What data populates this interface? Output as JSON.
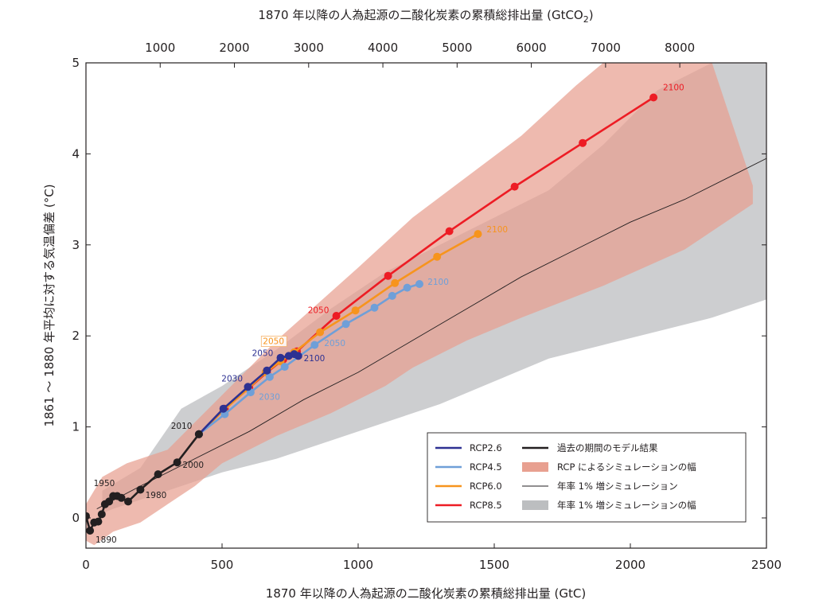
{
  "chart_data": {
    "type": "line",
    "title": "",
    "xlabel": "1870 年以降の人為起源の二酸化炭素の累積総排出量 (GtC)",
    "x2label": "1870 年以降の人為起源の二酸化炭素の累積総排出量 (GtCO",
    "x2label_sub": "2",
    "x2label_close": ")",
    "ylabel": "1861 ～ 1880 年平均に対する気温偏差 (°C)",
    "xlim": [
      0,
      2500
    ],
    "ylim": [
      -0.35,
      5
    ],
    "x_ticks": [
      "0",
      "500",
      "1000",
      "1500",
      "2000",
      "2500"
    ],
    "x_tick_values": [
      0,
      500,
      1000,
      1500,
      2000,
      2500
    ],
    "x2_ticks": [
      "1000",
      "2000",
      "3000",
      "4000",
      "5000",
      "6000",
      "7000",
      "8000"
    ],
    "x2_tick_values_gtco2": [
      1000,
      2000,
      3000,
      4000,
      5000,
      6000,
      7000,
      8000
    ],
    "x2_per_x": 3.667,
    "y_ticks": [
      "0",
      "1",
      "2",
      "3",
      "4",
      "5"
    ],
    "y_tick_values": [
      0,
      1,
      2,
      3,
      4,
      5
    ],
    "grid": false,
    "legend_position": "bottom-right",
    "colors": {
      "axis": "#231f20",
      "historical": "#231f20",
      "rcp26": "#2e3192",
      "rcp45": "#6f9fd8",
      "rcp60": "#f7941d",
      "rcp85": "#ed1c24",
      "rcp_range": "#e8a090",
      "onepct_line": "#231f20",
      "onepct_range": "#bcbec0"
    },
    "bands": [
      {
        "name": "年率 1% 増シミュレーションの幅",
        "color": "#bcbec0",
        "opacity": 0.75,
        "upper": [
          [
            60,
            0.3
          ],
          [
            200,
            0.55
          ],
          [
            350,
            1.2
          ],
          [
            500,
            1.45
          ],
          [
            700,
            1.85
          ],
          [
            900,
            2.3
          ],
          [
            1100,
            2.7
          ],
          [
            1300,
            3.0
          ],
          [
            1500,
            3.3
          ],
          [
            1700,
            3.6
          ],
          [
            1900,
            4.1
          ],
          [
            2100,
            4.7
          ],
          [
            2300,
            5.0
          ],
          [
            2500,
            5.0
          ]
        ],
        "lower": [
          [
            2500,
            2.4
          ],
          [
            2300,
            2.2
          ],
          [
            2100,
            2.05
          ],
          [
            1900,
            1.9
          ],
          [
            1700,
            1.75
          ],
          [
            1500,
            1.5
          ],
          [
            1300,
            1.25
          ],
          [
            1100,
            1.05
          ],
          [
            900,
            0.85
          ],
          [
            700,
            0.65
          ],
          [
            500,
            0.5
          ],
          [
            300,
            0.3
          ],
          [
            100,
            0.1
          ],
          [
            60,
            0.05
          ]
        ]
      },
      {
        "name": "RCP によるシミュレーションの幅",
        "color": "#e8a090",
        "opacity": 0.72,
        "upper": [
          [
            0,
            0.15
          ],
          [
            60,
            0.45
          ],
          [
            150,
            0.6
          ],
          [
            300,
            0.75
          ],
          [
            500,
            1.35
          ],
          [
            700,
            1.95
          ],
          [
            850,
            2.35
          ],
          [
            1000,
            2.75
          ],
          [
            1200,
            3.3
          ],
          [
            1400,
            3.75
          ],
          [
            1600,
            4.2
          ],
          [
            1800,
            4.75
          ],
          [
            1900,
            5.0
          ],
          [
            2300,
            5.0
          ],
          [
            2450,
            3.65
          ]
        ],
        "lower": [
          [
            2450,
            3.45
          ],
          [
            2200,
            2.95
          ],
          [
            1900,
            2.55
          ],
          [
            1600,
            2.2
          ],
          [
            1400,
            1.95
          ],
          [
            1200,
            1.65
          ],
          [
            1100,
            1.45
          ],
          [
            900,
            1.15
          ],
          [
            700,
            0.9
          ],
          [
            500,
            0.6
          ],
          [
            400,
            0.35
          ],
          [
            300,
            0.15
          ],
          [
            200,
            -0.05
          ],
          [
            100,
            -0.15
          ],
          [
            30,
            -0.3
          ],
          [
            0,
            -0.25
          ]
        ]
      }
    ],
    "series": [
      {
        "name": "年率 1% 増シミュレーション",
        "color": "#231f20",
        "width": 0.9,
        "markers": false,
        "x": [
          40,
          200,
          400,
          600,
          800,
          1000,
          1200,
          1400,
          1600,
          1800,
          2000,
          2200,
          2400,
          2500
        ],
        "y": [
          0.1,
          0.35,
          0.65,
          0.95,
          1.3,
          1.6,
          1.95,
          2.3,
          2.65,
          2.95,
          3.25,
          3.5,
          3.8,
          3.95
        ]
      },
      {
        "name": "RCP8.5",
        "color": "#ed1c24",
        "width": 2.6,
        "markers": true,
        "x": [
          415,
          510,
          600,
          665,
          725,
          775,
          920,
          1110,
          1335,
          1575,
          1825,
          2085
        ],
        "y": [
          0.92,
          1.2,
          1.43,
          1.6,
          1.74,
          1.83,
          2.22,
          2.66,
          3.15,
          3.64,
          4.12,
          4.62
        ]
      },
      {
        "name": "RCP6.0",
        "color": "#f7941d",
        "width": 2.6,
        "markers": true,
        "x": [
          415,
          505,
          595,
          660,
          715,
          765,
          860,
          990,
          1135,
          1290,
          1440
        ],
        "y": [
          0.92,
          1.18,
          1.42,
          1.6,
          1.72,
          1.82,
          2.04,
          2.28,
          2.58,
          2.87,
          3.12
        ]
      },
      {
        "name": "RCP4.5",
        "color": "#6f9fd8",
        "width": 2.6,
        "markers": true,
        "x": [
          415,
          510,
          605,
          675,
          730,
          840,
          955,
          1060,
          1125,
          1180,
          1225
        ],
        "y": [
          0.92,
          1.14,
          1.38,
          1.55,
          1.66,
          1.9,
          2.13,
          2.31,
          2.44,
          2.53,
          2.57
        ]
      },
      {
        "name": "RCP2.6",
        "color": "#2e3192",
        "width": 2.6,
        "markers": true,
        "x": [
          415,
          505,
          595,
          665,
          715,
          745,
          765,
          780
        ],
        "y": [
          0.92,
          1.2,
          1.44,
          1.62,
          1.76,
          1.78,
          1.8,
          1.78
        ]
      },
      {
        "name": "過去の期間のモデル結果",
        "color": "#231f20",
        "width": 2.6,
        "markers": true,
        "x": [
          0,
          15,
          30,
          45,
          58,
          70,
          85,
          100,
          115,
          130,
          155,
          200,
          265,
          335,
          415
        ],
        "y": [
          0.02,
          -0.14,
          -0.05,
          -0.04,
          0.04,
          0.15,
          0.18,
          0.24,
          0.24,
          0.22,
          0.18,
          0.31,
          0.48,
          0.61,
          0.92
        ]
      }
    ],
    "annotations": [
      {
        "text": "1950",
        "x": 28,
        "y": 0.35,
        "color": "#231f20",
        "anchor": "start"
      },
      {
        "text": "1890",
        "x": 35,
        "y": -0.27,
        "color": "#231f20",
        "anchor": "start"
      },
      {
        "text": "1980",
        "x": 218,
        "y": 0.22,
        "color": "#231f20",
        "anchor": "start"
      },
      {
        "text": "2000",
        "x": 355,
        "y": 0.55,
        "color": "#231f20",
        "anchor": "start"
      },
      {
        "text": "2010",
        "x": 312,
        "y": 0.98,
        "color": "#231f20",
        "anchor": "start"
      },
      {
        "text": "2030",
        "x": 498,
        "y": 1.5,
        "color": "#2e3192",
        "anchor": "start"
      },
      {
        "text": "2050",
        "x": 610,
        "y": 1.78,
        "color": "#2e3192",
        "anchor": "start"
      },
      {
        "text": "2050",
        "x": 650,
        "y": 1.91,
        "color": "#f7941d",
        "anchor": "start",
        "boxed": true
      },
      {
        "text": "2050",
        "x": 815,
        "y": 2.25,
        "color": "#ed1c24",
        "anchor": "start"
      },
      {
        "text": "2100",
        "x": 800,
        "y": 1.72,
        "color": "#2e3192",
        "anchor": "start"
      },
      {
        "text": "2100",
        "x": 2120,
        "y": 4.7,
        "color": "#ed1c24",
        "anchor": "start"
      },
      {
        "text": "2100",
        "x": 1472,
        "y": 3.14,
        "color": "#f7941d",
        "anchor": "start"
      },
      {
        "text": "2100",
        "x": 1255,
        "y": 2.56,
        "color": "#6f9fd8",
        "anchor": "start"
      },
      {
        "text": "2030",
        "x": 635,
        "y": 1.3,
        "color": "#6f9fd8",
        "anchor": "start"
      },
      {
        "text": "2050",
        "x": 875,
        "y": 1.89,
        "color": "#6f9fd8",
        "anchor": "start"
      }
    ],
    "legend": {
      "left": [
        {
          "label": "RCP2.6",
          "type": "line",
          "color": "#2e3192"
        },
        {
          "label": "RCP4.5",
          "type": "line",
          "color": "#6f9fd8"
        },
        {
          "label": "RCP6.0",
          "type": "line",
          "color": "#f7941d"
        },
        {
          "label": "RCP8.5",
          "type": "line",
          "color": "#ed1c24"
        }
      ],
      "right": [
        {
          "label": "過去の期間のモデル結果",
          "type": "line",
          "color": "#231f20"
        },
        {
          "label": "RCP によるシミュレーションの幅",
          "type": "box",
          "color": "#e8a090"
        },
        {
          "label": "年率 1% 増シミュレーション",
          "type": "thin",
          "color": "#231f20"
        },
        {
          "label": "年率 1% 増シミュレーションの幅",
          "type": "box",
          "color": "#bcbec0"
        }
      ]
    }
  }
}
